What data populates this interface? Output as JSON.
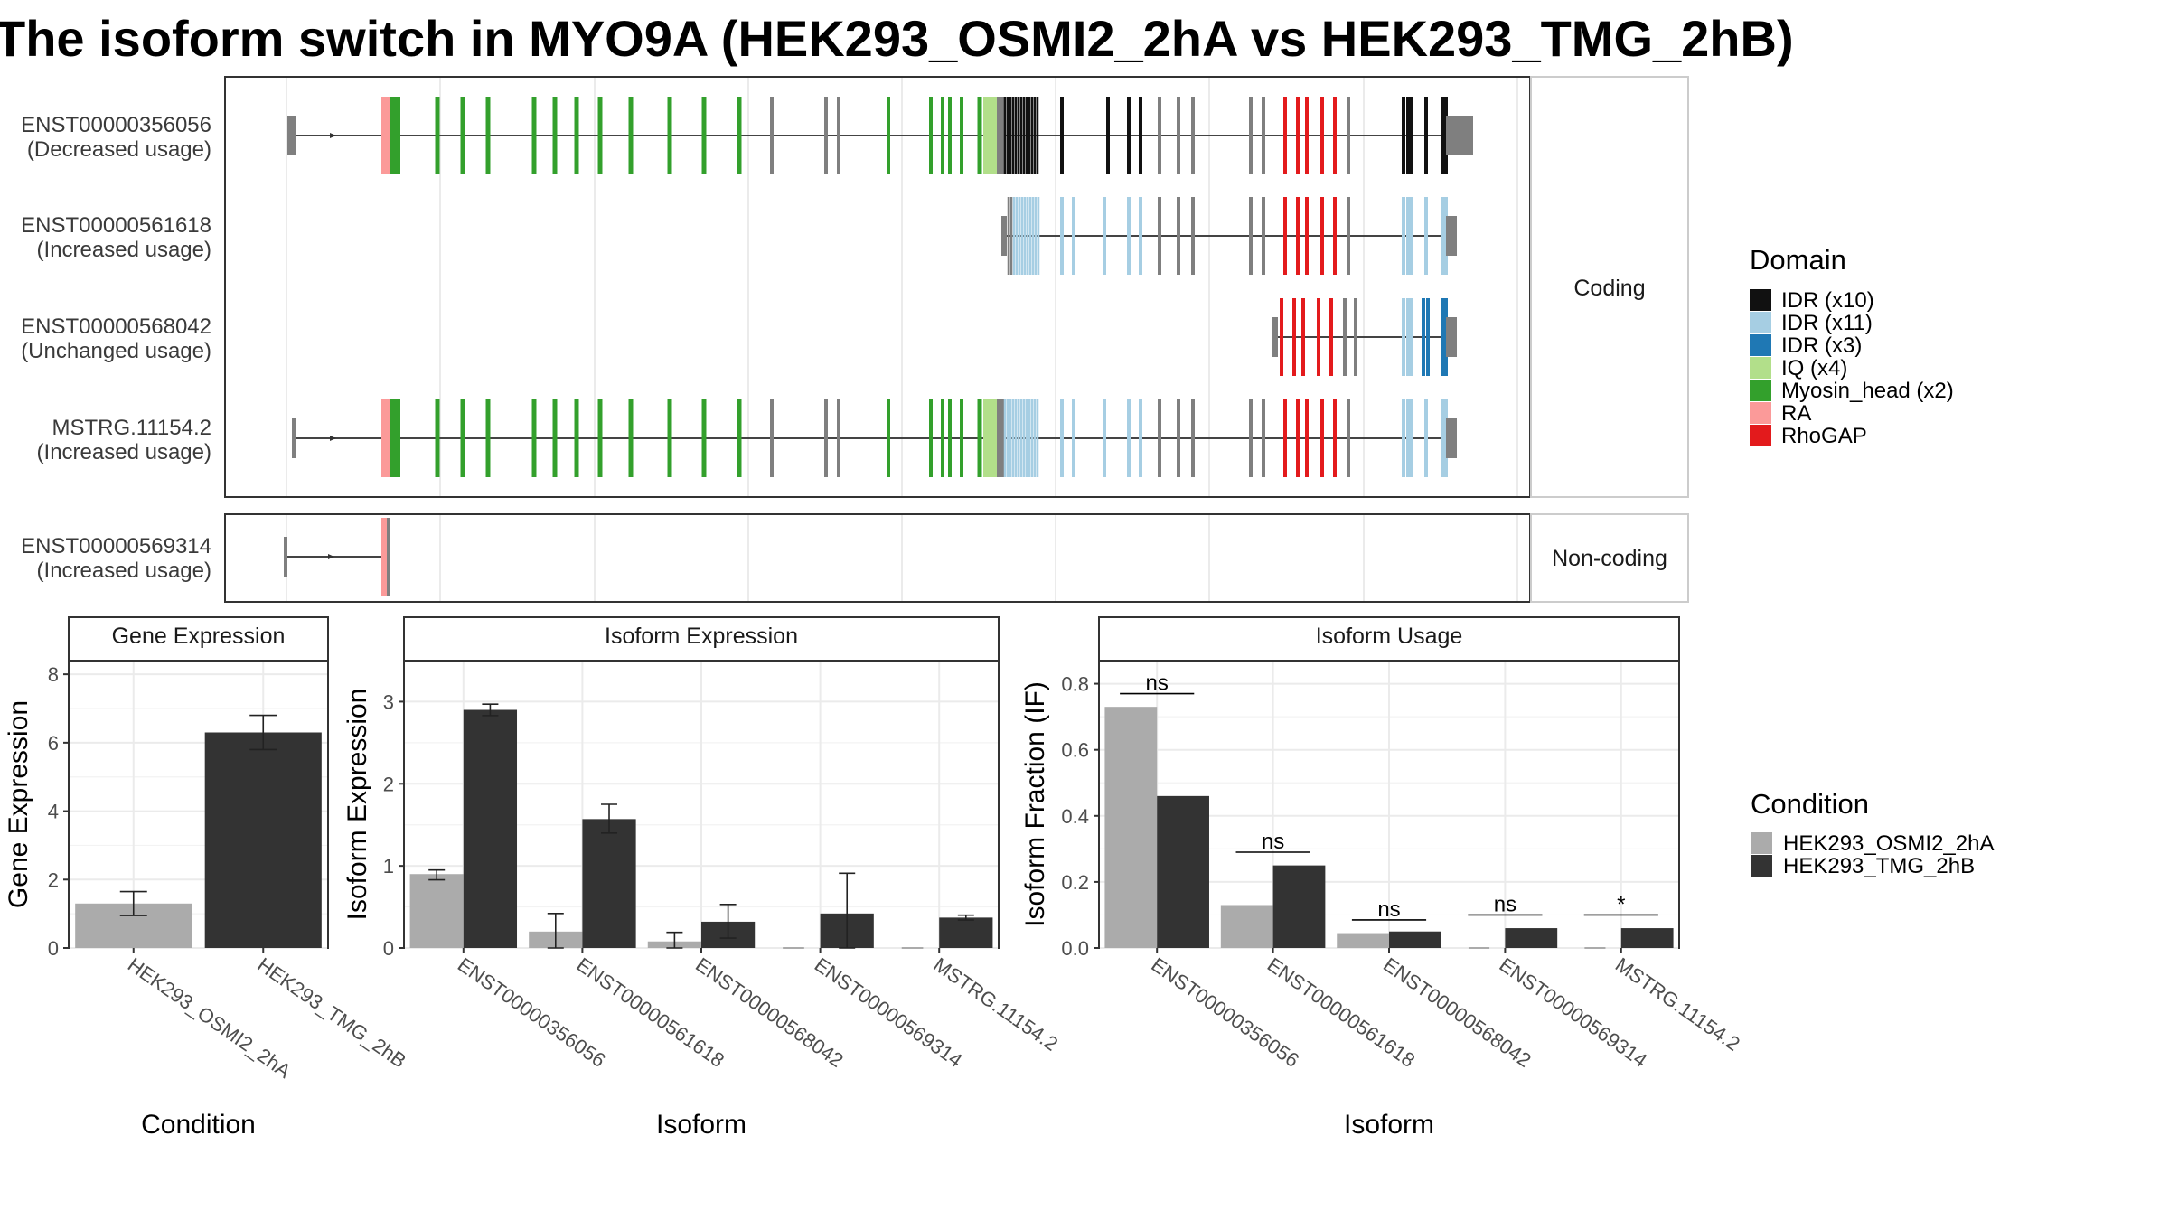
{
  "title": "The isoform switch in MYO9A (HEK293_OSMI2_2hA vs HEK293_TMG_2hB)",
  "colors": {
    "cond1": "#ababab",
    "cond2": "#333333",
    "intron": "#444444",
    "utr_exon": "#7f7f7f",
    "black_exon": "#111111"
  },
  "structure": {
    "facets": [
      {
        "label": "Coding"
      },
      {
        "label": "Non-coding"
      }
    ],
    "transcripts": [
      {
        "id": "ENST00000356056",
        "usage": "(Decreased usage)",
        "facet": 0
      },
      {
        "id": "ENST00000561618",
        "usage": "(Increased usage)",
        "facet": 0
      },
      {
        "id": "ENST00000568042",
        "usage": "(Unchanged usage)",
        "facet": 0
      },
      {
        "id": "MSTRG.11154.2",
        "usage": "(Increased usage)",
        "facet": 0
      },
      {
        "id": "ENST00000569314",
        "usage": "(Increased usage)",
        "facet": 1
      }
    ]
  },
  "domain_legend": {
    "title": "Domain",
    "items": [
      {
        "label": "IDR (x10)",
        "color": "#111111"
      },
      {
        "label": "IDR (x11)",
        "color": "#a6cee3"
      },
      {
        "label": "IDR (x3)",
        "color": "#1f78b4"
      },
      {
        "label": "IQ (x4)",
        "color": "#b2df8a"
      },
      {
        "label": "Myosin_head (x2)",
        "color": "#33a02c"
      },
      {
        "label": "RA",
        "color": "#fb9a99"
      },
      {
        "label": "RhoGAP",
        "color": "#e31a1c"
      }
    ]
  },
  "condition_legend": {
    "title": "Condition",
    "items": [
      {
        "label": "HEK293_OSMI2_2hA",
        "color": "#ababab"
      },
      {
        "label": "HEK293_TMG_2hB",
        "color": "#333333"
      }
    ]
  },
  "chart_data": [
    {
      "type": "bar",
      "title": "Gene Expression",
      "xlabel": "Condition",
      "ylabel": "Gene Expression",
      "ylim": [
        0,
        8.4
      ],
      "yticks": [
        0,
        2,
        4,
        6,
        8
      ],
      "categories": [
        "HEK293_OSMI2_2hA",
        "HEK293_TMG_2hB"
      ],
      "values": [
        1.3,
        6.3
      ],
      "errors": [
        [
          0.95,
          1.65
        ],
        [
          5.8,
          6.8
        ]
      ]
    },
    {
      "type": "bar",
      "title": "Isoform Expression",
      "xlabel": "Isoform",
      "ylabel": "Isoform Expression",
      "ylim": [
        0,
        3.5
      ],
      "yticks": [
        0,
        1,
        2,
        3
      ],
      "categories": [
        "ENST00000356056",
        "ENST00000561618",
        "ENST00000568042",
        "ENST00000569314",
        "MSTRG.11154.2"
      ],
      "series": [
        {
          "name": "HEK293_OSMI2_2hA",
          "values": [
            0.9,
            0.2,
            0.08,
            0.0,
            0.0
          ],
          "errors": [
            [
              0.83,
              0.95
            ],
            [
              0.0,
              0.42
            ],
            [
              0.0,
              0.19
            ],
            [
              0.0,
              0.0
            ],
            [
              0.0,
              0.0
            ]
          ]
        },
        {
          "name": "HEK293_TMG_2hB",
          "values": [
            2.9,
            1.57,
            0.32,
            0.42,
            0.37
          ],
          "errors": [
            [
              2.83,
              2.97
            ],
            [
              1.4,
              1.75
            ],
            [
              0.12,
              0.53
            ],
            [
              0.0,
              0.91
            ],
            [
              0.34,
              0.4
            ]
          ]
        }
      ]
    },
    {
      "type": "bar",
      "title": "Isoform Usage",
      "xlabel": "Isoform",
      "ylabel": "Isoform Fraction (IF)",
      "ylim": [
        0,
        0.87
      ],
      "yticks": [
        0.0,
        0.2,
        0.4,
        0.6,
        0.8
      ],
      "categories": [
        "ENST00000356056",
        "ENST00000561618",
        "ENST00000568042",
        "ENST00000569314",
        "MSTRG.11154.2"
      ],
      "series": [
        {
          "name": "HEK293_OSMI2_2hA",
          "values": [
            0.73,
            0.13,
            0.045,
            0.0,
            0.0
          ]
        },
        {
          "name": "HEK293_TMG_2hB",
          "values": [
            0.46,
            0.25,
            0.05,
            0.06,
            0.06
          ]
        }
      ],
      "significance": [
        "ns",
        "ns",
        "ns",
        "ns",
        "*"
      ],
      "significance_y": [
        0.77,
        0.29,
        0.085,
        0.1,
        0.1
      ]
    }
  ]
}
